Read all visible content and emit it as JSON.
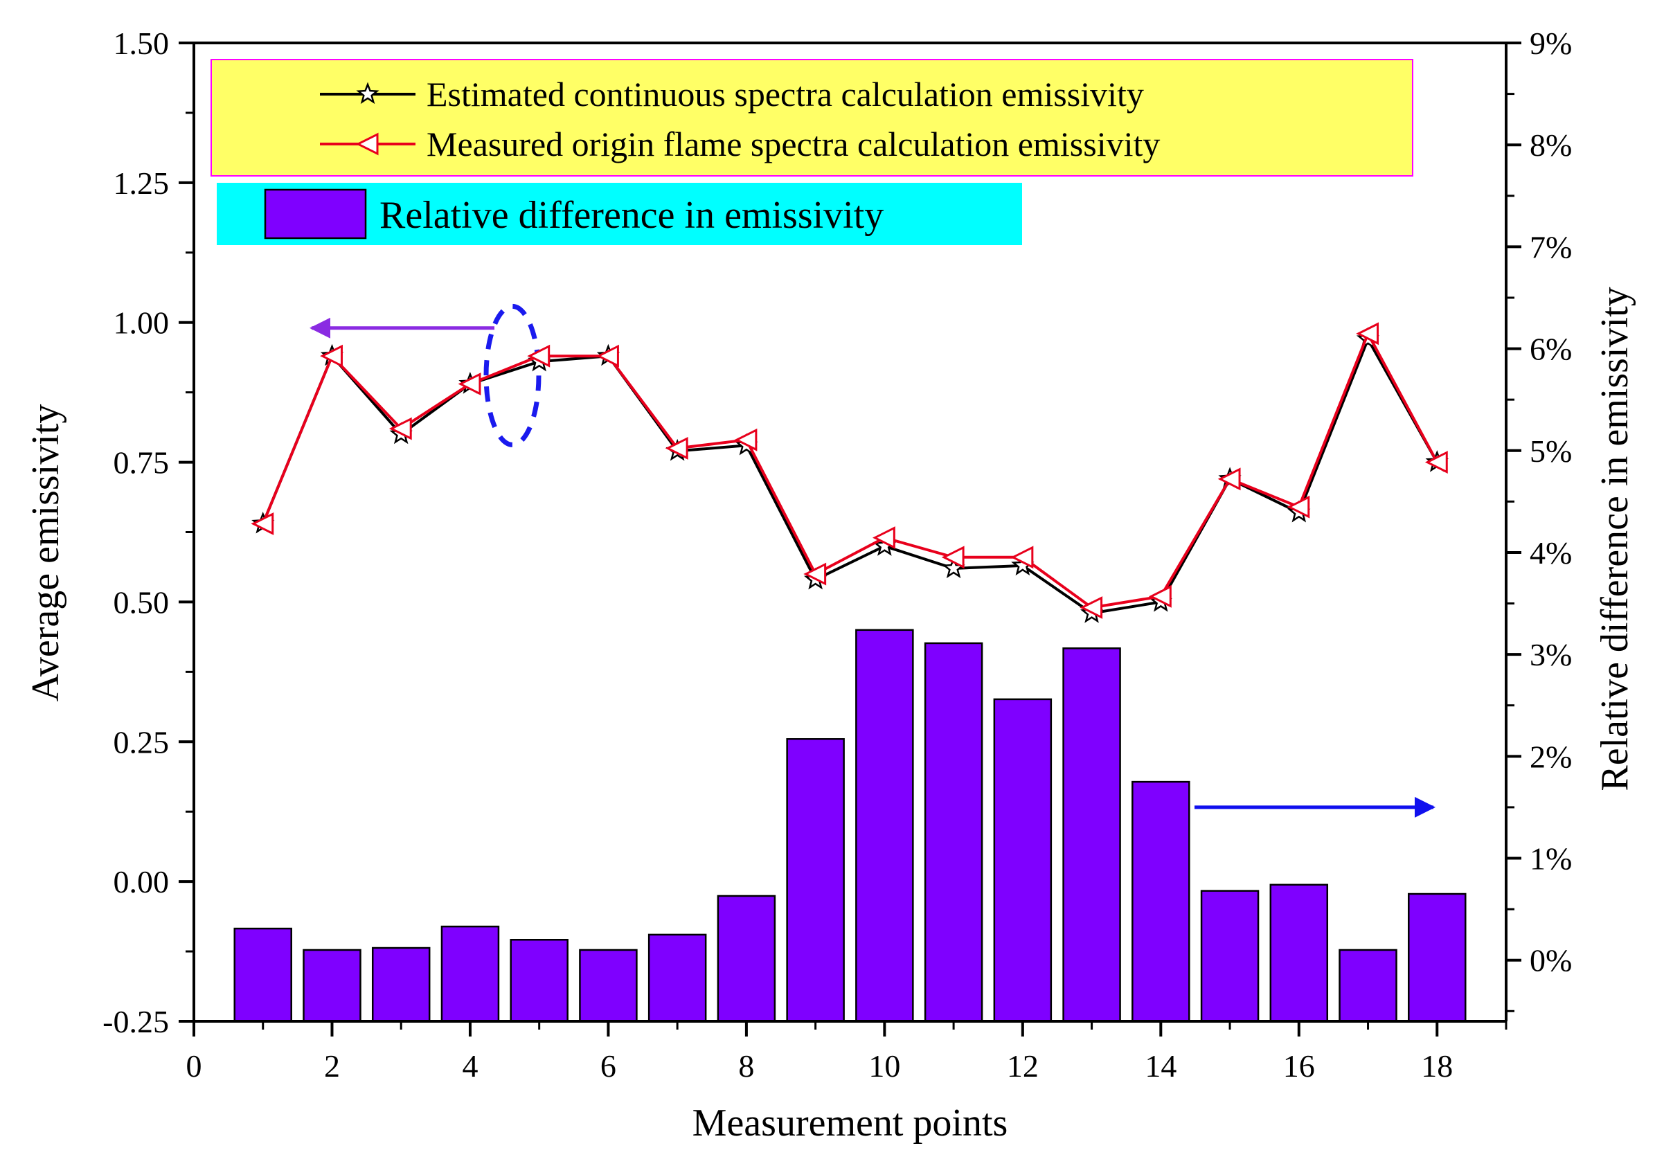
{
  "chart_data": {
    "type": "bar+line",
    "xlabel": "Measurement points",
    "ylabel_left": "Average emissivity",
    "ylabel_right": "Relative difference in emissivity",
    "x_range": [
      0,
      19
    ],
    "x_ticks": [
      0,
      2,
      4,
      6,
      8,
      10,
      12,
      14,
      16,
      18
    ],
    "x_tick_labels": [
      "0",
      "2",
      "4",
      "6",
      "8",
      "10",
      "12",
      "14",
      "16",
      "18"
    ],
    "y_left_range": [
      -0.25,
      1.5
    ],
    "y_left_ticks": [
      -0.25,
      0,
      0.25,
      0.5,
      0.75,
      1.0,
      1.25,
      1.5
    ],
    "y_left_tick_labels": [
      "-0.25",
      "0.00",
      "0.25",
      "0.50",
      "0.75",
      "1.00",
      "1.25",
      "1.50"
    ],
    "y_right_range": [
      -0.6,
      9
    ],
    "y_right_ticks": [
      0,
      1,
      2,
      3,
      4,
      5,
      6,
      7,
      8,
      9
    ],
    "y_right_tick_labels": [
      "0%",
      "1%",
      "2%",
      "3%",
      "4%",
      "5%",
      "6%",
      "7%",
      "8%",
      "9%"
    ],
    "x": [
      1,
      2,
      3,
      4,
      5,
      6,
      7,
      8,
      9,
      10,
      11,
      12,
      13,
      14,
      15,
      16,
      17,
      18
    ],
    "series": [
      {
        "name": "Estimated continuous spectra calculation emissivity",
        "type": "line",
        "axis": "left",
        "color": "#000000",
        "marker": "star",
        "values": [
          0.64,
          0.94,
          0.8,
          0.89,
          0.93,
          0.94,
          0.77,
          0.78,
          0.54,
          0.6,
          0.56,
          0.565,
          0.48,
          0.5,
          0.72,
          0.66,
          0.97,
          0.75
        ]
      },
      {
        "name": "Measured origin flame spectra calculation emissivity",
        "type": "line",
        "axis": "left",
        "color": "#e8001c",
        "marker": "triangle-left",
        "values": [
          0.64,
          0.94,
          0.81,
          0.89,
          0.94,
          0.94,
          0.775,
          0.79,
          0.55,
          0.615,
          0.58,
          0.58,
          0.49,
          0.51,
          0.72,
          0.67,
          0.98,
          0.75
        ]
      },
      {
        "name": "Relative difference in emissivity",
        "type": "bar",
        "axis": "right",
        "color": "#7f00ff",
        "values": [
          0.31,
          0.1,
          0.12,
          0.33,
          0.2,
          0.1,
          0.25,
          0.63,
          2.17,
          3.24,
          3.11,
          2.56,
          3.06,
          1.75,
          0.68,
          0.74,
          0.1,
          0.65
        ]
      }
    ],
    "legend_placement": "top-left",
    "colors": {
      "legend_lines_bg": "#ffff66",
      "legend_lines_border": "#ff00ff",
      "legend_bar_bg": "#00ffff",
      "bar": "#7f00ff",
      "left_arrow": "#8a2be2",
      "right_arrow": "#1010ee",
      "ellipse": "#1a1aee"
    }
  }
}
